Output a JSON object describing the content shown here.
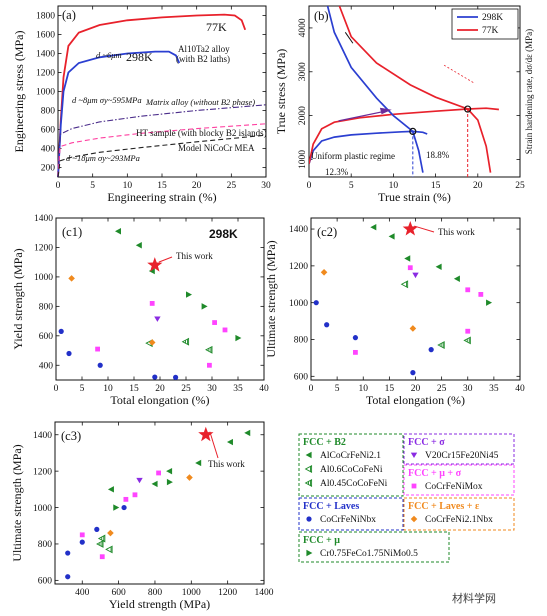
{
  "watermark": "材料学网",
  "colors": {
    "red": "#e8212b",
    "blue": "#2b3fd1",
    "green": "#1f8a2a",
    "magenta": "#ff44ff",
    "purple": "#8a2be2",
    "orange": "#f08a1e",
    "navy": "#2230c8"
  },
  "chart_data": [
    {
      "panel": "(a)",
      "type": "line",
      "xlabel": "Engineering strain (%)",
      "ylabel": "Engineering stress (MPa)",
      "xlim": [
        0,
        30
      ],
      "ylim": [
        100,
        1900
      ],
      "xticks": [
        0,
        5,
        10,
        15,
        20,
        25,
        30
      ],
      "yticks": [
        200,
        400,
        600,
        800,
        1000,
        1200,
        1400,
        1600,
        1800
      ],
      "series": [
        {
          "name": "77K",
          "style": "solid",
          "color": "#e8212b",
          "x": [
            0,
            0.4,
            0.8,
            1.5,
            3,
            6,
            10,
            15,
            20,
            24,
            25.5,
            26.5,
            27
          ],
          "y": [
            100,
            700,
            1150,
            1480,
            1620,
            1700,
            1750,
            1780,
            1800,
            1810,
            1800,
            1750,
            1650
          ]
        },
        {
          "name": "298K",
          "style": "solid",
          "color": "#2b3fd1",
          "x": [
            0,
            0.4,
            0.8,
            1.5,
            3,
            6,
            10,
            14,
            16,
            17,
            17.5
          ],
          "y": [
            100,
            650,
            1000,
            1200,
            1300,
            1360,
            1400,
            1420,
            1420,
            1380,
            1300
          ]
        },
        {
          "name": "Matrix alloy (without B2 phase)",
          "style": "dashdot",
          "color": "#4a2c8a",
          "x": [
            0,
            0.3,
            2,
            6,
            12,
            20,
            30
          ],
          "y": [
            100,
            550,
            610,
            680,
            740,
            800,
            860
          ]
        },
        {
          "name": "HT sample (with blocky B2 islands)",
          "style": "dash",
          "color": "#ff3fa0",
          "x": [
            0,
            0.3,
            2,
            6,
            12,
            20,
            30
          ],
          "y": [
            100,
            420,
            460,
            510,
            560,
            610,
            660
          ]
        },
        {
          "name": "Model NiCoCr MEA",
          "style": "dash",
          "color": "#222222",
          "x": [
            0,
            0.3,
            2,
            6,
            12,
            20,
            30
          ],
          "y": [
            100,
            270,
            310,
            360,
            410,
            470,
            540
          ]
        }
      ],
      "annotations": [
        "77K",
        "298K",
        "Al10Ta2 alloy",
        "(with B2 laths)",
        "d ~6μm",
        "d ~8μm σy~595MPa",
        "Matrix alloy (without B2 phase)",
        "HT sample (with blocky B2 islands)",
        "d ~18μm σy~293MPa",
        "Model NiCoCr MEA"
      ]
    },
    {
      "panel": "(b)",
      "type": "line",
      "xlabel": "True strain (%)",
      "ylabel": "True stress (MPa)",
      "ylabel_right": "Strain hardening rate, dσ/dε (MPa)",
      "xlim": [
        0,
        25
      ],
      "ylim": [
        600,
        4500
      ],
      "xticks": [
        0,
        5,
        10,
        15,
        20,
        25
      ],
      "yticks": [
        1000,
        2000,
        3000,
        4000
      ],
      "legend": [
        "298K",
        "77K"
      ],
      "series": [
        {
          "name": "298K true stress",
          "color": "#2b3fd1",
          "x": [
            0,
            0.5,
            1.5,
            3,
            5,
            8,
            11,
            12.3,
            13.5,
            14
          ],
          "y": [
            900,
            1200,
            1420,
            1510,
            1560,
            1600,
            1630,
            1640,
            1620,
            1580
          ]
        },
        {
          "name": "77K true stress",
          "color": "#e8212b",
          "x": [
            0,
            0.5,
            1.5,
            3,
            6,
            10,
            15,
            18.8,
            21,
            22.5
          ],
          "y": [
            900,
            1350,
            1700,
            1850,
            1950,
            2030,
            2100,
            2150,
            2170,
            2140
          ]
        },
        {
          "name": "298K hardening rate",
          "color": "#2b3fd1",
          "x": [
            2.2,
            3,
            5,
            8,
            10,
            12.3,
            13,
            13.5
          ],
          "y": [
            4500,
            3900,
            3100,
            2400,
            2000,
            1640,
            1200,
            700
          ]
        },
        {
          "name": "77K hardening rate",
          "color": "#e8212b",
          "x": [
            3.6,
            5,
            8,
            12,
            15,
            18.8,
            20,
            21,
            21.5
          ],
          "y": [
            4500,
            3800,
            3200,
            2700,
            2420,
            2150,
            1900,
            1300,
            700
          ]
        }
      ],
      "annotations": [
        "Uniform plastic regime",
        "12.3%",
        "18.8%"
      ]
    },
    {
      "panel": "(c1)",
      "type": "scatter",
      "title": "298K",
      "xlabel": "Total elongation (%)",
      "ylabel": "Yield strength (MPa)",
      "xlim": [
        0,
        40
      ],
      "ylim": [
        300,
        1400
      ],
      "xticks": [
        0,
        5,
        10,
        15,
        20,
        25,
        30,
        35,
        40
      ],
      "yticks": [
        400,
        600,
        800,
        1000,
        1200,
        1400
      ],
      "annotation": "This work",
      "points": [
        {
          "s": "b2a",
          "x": 12,
          "y": 1310
        },
        {
          "s": "b2a",
          "x": 16,
          "y": 1215
        },
        {
          "s": "b2a",
          "x": 18.5,
          "y": 1040
        },
        {
          "s": "b2b",
          "x": 18,
          "y": 550
        },
        {
          "s": "b2c",
          "x": 25,
          "y": 560
        },
        {
          "s": "b2c",
          "x": 29.5,
          "y": 505
        },
        {
          "s": "lav",
          "x": 1,
          "y": 630
        },
        {
          "s": "lav",
          "x": 2.5,
          "y": 480
        },
        {
          "s": "lav",
          "x": 8.5,
          "y": 400
        },
        {
          "s": "lav",
          "x": 19,
          "y": 320
        },
        {
          "s": "lav",
          "x": 23,
          "y": 318
        },
        {
          "s": "sig",
          "x": 19.5,
          "y": 715
        },
        {
          "s": "mus",
          "x": 8,
          "y": 510
        },
        {
          "s": "mus",
          "x": 18.5,
          "y": 820
        },
        {
          "s": "mus",
          "x": 30.5,
          "y": 690
        },
        {
          "s": "mus",
          "x": 32.5,
          "y": 640
        },
        {
          "s": "mus",
          "x": 29.5,
          "y": 400
        },
        {
          "s": "lae",
          "x": 3,
          "y": 990
        },
        {
          "s": "lae",
          "x": 18.5,
          "y": 555
        },
        {
          "s": "mu",
          "x": 25.5,
          "y": 880
        },
        {
          "s": "mu",
          "x": 28.5,
          "y": 800
        },
        {
          "s": "mu",
          "x": 35,
          "y": 585
        },
        {
          "s": "star",
          "x": 19,
          "y": 1080
        }
      ]
    },
    {
      "panel": "(c2)",
      "type": "scatter",
      "xlabel": "Total elongation (%)",
      "ylabel": "Ultimate strength (MPa)",
      "xlim": [
        0,
        40
      ],
      "ylim": [
        580,
        1460
      ],
      "xticks": [
        0,
        5,
        10,
        15,
        20,
        25,
        30,
        35,
        40
      ],
      "yticks": [
        600,
        800,
        1000,
        1200,
        1400
      ],
      "annotation": "This work",
      "points": [
        {
          "s": "b2a",
          "x": 12,
          "y": 1410
        },
        {
          "s": "b2a",
          "x": 15.5,
          "y": 1360
        },
        {
          "s": "b2a",
          "x": 18.5,
          "y": 1240
        },
        {
          "s": "b2a",
          "x": 24.5,
          "y": 1195
        },
        {
          "s": "b2a",
          "x": 28,
          "y": 1130
        },
        {
          "s": "b2b",
          "x": 18,
          "y": 1100
        },
        {
          "s": "b2c",
          "x": 25,
          "y": 770
        },
        {
          "s": "b2c",
          "x": 30,
          "y": 795
        },
        {
          "s": "lav",
          "x": 1,
          "y": 1000
        },
        {
          "s": "lav",
          "x": 3,
          "y": 880
        },
        {
          "s": "lav",
          "x": 8.5,
          "y": 810
        },
        {
          "s": "lav",
          "x": 23,
          "y": 745
        },
        {
          "s": "lav",
          "x": 19.5,
          "y": 620
        },
        {
          "s": "sig",
          "x": 20,
          "y": 1150
        },
        {
          "s": "mus",
          "x": 8.5,
          "y": 730
        },
        {
          "s": "mus",
          "x": 19,
          "y": 1190
        },
        {
          "s": "mus",
          "x": 30,
          "y": 1070
        },
        {
          "s": "mus",
          "x": 32.5,
          "y": 1045
        },
        {
          "s": "mus",
          "x": 30,
          "y": 845
        },
        {
          "s": "lae",
          "x": 2.5,
          "y": 1165
        },
        {
          "s": "lae",
          "x": 19.5,
          "y": 860
        },
        {
          "s": "mu",
          "x": 34,
          "y": 1000
        },
        {
          "s": "star",
          "x": 19,
          "y": 1400
        }
      ]
    },
    {
      "panel": "(c3)",
      "type": "scatter",
      "xlabel": "Yield strength (MPa)",
      "ylabel": "Ultimate strength (MPa)",
      "xlim": [
        250,
        1400
      ],
      "ylim": [
        580,
        1470
      ],
      "xticks": [
        400,
        600,
        800,
        1000,
        1200,
        1400
      ],
      "yticks": [
        600,
        800,
        1000,
        1200,
        1400
      ],
      "annotation": "This work",
      "points": [
        {
          "s": "b2a",
          "x": 1310,
          "y": 1410
        },
        {
          "s": "b2a",
          "x": 1215,
          "y": 1360
        },
        {
          "s": "b2a",
          "x": 1040,
          "y": 1245
        },
        {
          "s": "b2a",
          "x": 880,
          "y": 1200
        },
        {
          "s": "b2a",
          "x": 800,
          "y": 1130
        },
        {
          "s": "b2a",
          "x": 560,
          "y": 1100
        },
        {
          "s": "b2b",
          "x": 550,
          "y": 770
        },
        {
          "s": "b2c",
          "x": 500,
          "y": 800
        },
        {
          "s": "b2c",
          "x": 510,
          "y": 830
        },
        {
          "s": "lav",
          "x": 320,
          "y": 620
        },
        {
          "s": "lav",
          "x": 320,
          "y": 750
        },
        {
          "s": "lav",
          "x": 400,
          "y": 810
        },
        {
          "s": "lav",
          "x": 480,
          "y": 880
        },
        {
          "s": "lav",
          "x": 630,
          "y": 1000
        },
        {
          "s": "sig",
          "x": 715,
          "y": 1150
        },
        {
          "s": "mus",
          "x": 400,
          "y": 850
        },
        {
          "s": "mus",
          "x": 510,
          "y": 730
        },
        {
          "s": "mus",
          "x": 640,
          "y": 1045
        },
        {
          "s": "mus",
          "x": 690,
          "y": 1070
        },
        {
          "s": "mus",
          "x": 820,
          "y": 1190
        },
        {
          "s": "lae",
          "x": 990,
          "y": 1165
        },
        {
          "s": "lae",
          "x": 555,
          "y": 860
        },
        {
          "s": "mu",
          "x": 585,
          "y": 1000
        },
        {
          "s": "mu",
          "x": 880,
          "y": 1140
        },
        {
          "s": "star",
          "x": 1080,
          "y": 1400
        }
      ]
    }
  ],
  "legend": {
    "groups": [
      {
        "key": "b2",
        "title": "FCC + B2",
        "color": "#1f8a2a",
        "items": [
          {
            "s": "b2a",
            "label": "AlCoCrFeNi2.1"
          },
          {
            "s": "b2b",
            "label": "Al0.6CoCoFeNi"
          },
          {
            "s": "b2c",
            "label": "Al0.45CoCoFeNi"
          }
        ]
      },
      {
        "key": "sig",
        "title": "FCC + σ",
        "color": "#8a2be2",
        "items": [
          {
            "s": "sig",
            "label": "V20Cr15Fe20Ni45"
          }
        ]
      },
      {
        "key": "mus",
        "title": "FCC + μ + σ",
        "color": "#ff44ff",
        "items": [
          {
            "s": "mus",
            "label": "CoCrFeNiMox"
          }
        ]
      },
      {
        "key": "lav",
        "title": "FCC + Laves",
        "color": "#2230c8",
        "items": [
          {
            "s": "lav",
            "label": "CoCrFeNiNbx"
          }
        ]
      },
      {
        "key": "lae",
        "title": "FCC + Laves + ε",
        "color": "#f08a1e",
        "items": [
          {
            "s": "lae",
            "label": "CoCrFeNi2.1Nbx"
          }
        ]
      },
      {
        "key": "mu",
        "title": "FCC + μ",
        "color": "#1f8a2a",
        "items": [
          {
            "s": "mu",
            "label": "Cr0.75FeCo1.75NiMo0.5"
          }
        ]
      }
    ]
  }
}
